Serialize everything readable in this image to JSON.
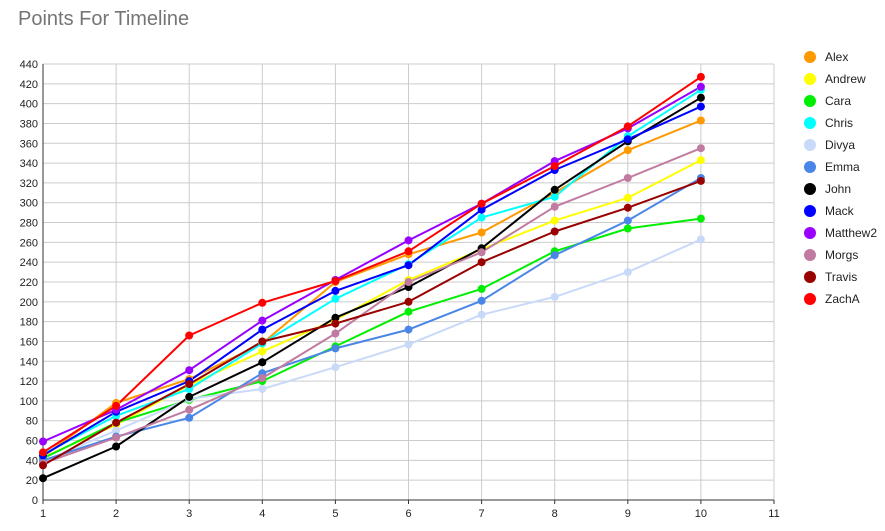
{
  "chart_data": {
    "type": "line",
    "title": "Points For Timeline",
    "xlabel": "",
    "ylabel": "",
    "xlim": [
      1,
      11
    ],
    "ylim": [
      0,
      440
    ],
    "xticks": [
      "1",
      "2",
      "3",
      "4",
      "5",
      "6",
      "7",
      "8",
      "9",
      "10",
      "11"
    ],
    "yticks": [
      "0",
      "20",
      "40",
      "60",
      "80",
      "100",
      "120",
      "140",
      "160",
      "180",
      "200",
      "220",
      "240",
      "260",
      "280",
      "300",
      "320",
      "340",
      "360",
      "380",
      "400",
      "420",
      "440"
    ],
    "grid": true,
    "legend_position": "right",
    "x": [
      1,
      2,
      3,
      4,
      5,
      6,
      7,
      8,
      9,
      10
    ],
    "series": [
      {
        "name": "Alex",
        "color": "#ff9900",
        "values": [
          44,
          98,
          122,
          158,
          220,
          248,
          270,
          310,
          353,
          383
        ]
      },
      {
        "name": "Andrew",
        "color": "#ffff00",
        "values": [
          43,
          76,
          116,
          150,
          182,
          222,
          253,
          282,
          305,
          343
        ]
      },
      {
        "name": "Cara",
        "color": "#00ee00",
        "values": [
          42,
          78,
          101,
          120,
          155,
          190,
          213,
          251,
          274,
          284
        ]
      },
      {
        "name": "Chris",
        "color": "#00ffff",
        "values": [
          46,
          85,
          112,
          158,
          203,
          238,
          285,
          306,
          367,
          414
        ]
      },
      {
        "name": "Divya",
        "color": "#c9daf8",
        "values": [
          39,
          70,
          102,
          112,
          134,
          157,
          187,
          205,
          230,
          263
        ]
      },
      {
        "name": "Emma",
        "color": "#4a86e8",
        "values": [
          40,
          64,
          83,
          128,
          153,
          172,
          201,
          247,
          282,
          325
        ]
      },
      {
        "name": "John",
        "color": "#000000",
        "values": [
          22,
          54,
          104,
          139,
          184,
          215,
          254,
          313,
          362,
          406
        ]
      },
      {
        "name": "Mack",
        "color": "#0000ff",
        "values": [
          45,
          89,
          120,
          172,
          211,
          237,
          293,
          333,
          364,
          397
        ]
      },
      {
        "name": "Matthew2",
        "color": "#9900ff",
        "values": [
          59,
          91,
          131,
          181,
          222,
          262,
          299,
          342,
          375,
          417
        ]
      },
      {
        "name": "Morgs",
        "color": "#c27ba0",
        "values": [
          37,
          63,
          91,
          123,
          168,
          220,
          250,
          296,
          325,
          355
        ]
      },
      {
        "name": "Travis",
        "color": "#990000",
        "values": [
          35,
          78,
          117,
          160,
          178,
          200,
          240,
          271,
          295,
          322
        ]
      },
      {
        "name": "ZachA",
        "color": "#ff0000",
        "values": [
          48,
          95,
          166,
          199,
          221,
          251,
          299,
          337,
          377,
          427
        ]
      }
    ]
  }
}
